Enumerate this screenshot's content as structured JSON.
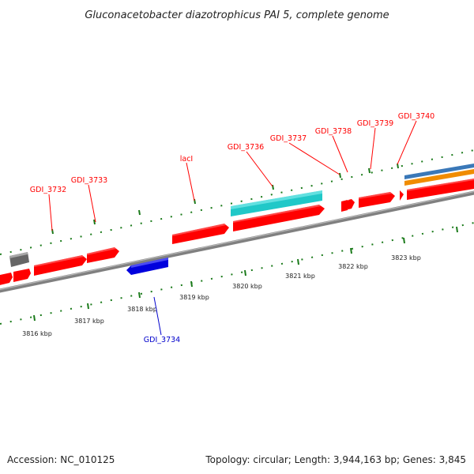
{
  "title": "Gluconacetobacter diazotrophicus PAI 5, complete genome",
  "footer": {
    "accession": "Accession: NC_010125",
    "topology": "Topology: circular; Length: 3,944,163 bp; Genes: 3,845"
  },
  "scale_labels": [
    {
      "text": "3816 kbp"
    },
    {
      "text": "3817 kbp"
    },
    {
      "text": "3818 kbp"
    },
    {
      "text": "3819 kbp"
    },
    {
      "text": "3820 kbp"
    },
    {
      "text": "3821 kbp"
    },
    {
      "text": "3822 kbp"
    },
    {
      "text": "3823 kbp"
    }
  ],
  "gene_labels": [
    {
      "text": "GDI_3732",
      "color": "#ff0000"
    },
    {
      "text": "GDI_3733",
      "color": "#ff0000"
    },
    {
      "text": "lacI",
      "color": "#ff0000"
    },
    {
      "text": "GDI_3736",
      "color": "#ff0000"
    },
    {
      "text": "GDI_3737",
      "color": "#ff0000"
    },
    {
      "text": "GDI_3738",
      "color": "#ff0000"
    },
    {
      "text": "GDI_3739",
      "color": "#ff0000"
    },
    {
      "text": "GDI_3740",
      "color": "#ff0000"
    },
    {
      "text": "GDI_3734",
      "color": "#0000cc"
    }
  ],
  "colors": {
    "cds_forward": "#ff0000",
    "cds_reverse": "#0000dd",
    "gray_feature": "#666666",
    "cyan_feature": "#20c8c8",
    "orange_feature": "#f08c00",
    "steelblue_feature": "#3a78b8",
    "backbone": "#808080",
    "tick": "#1a7a1a"
  }
}
